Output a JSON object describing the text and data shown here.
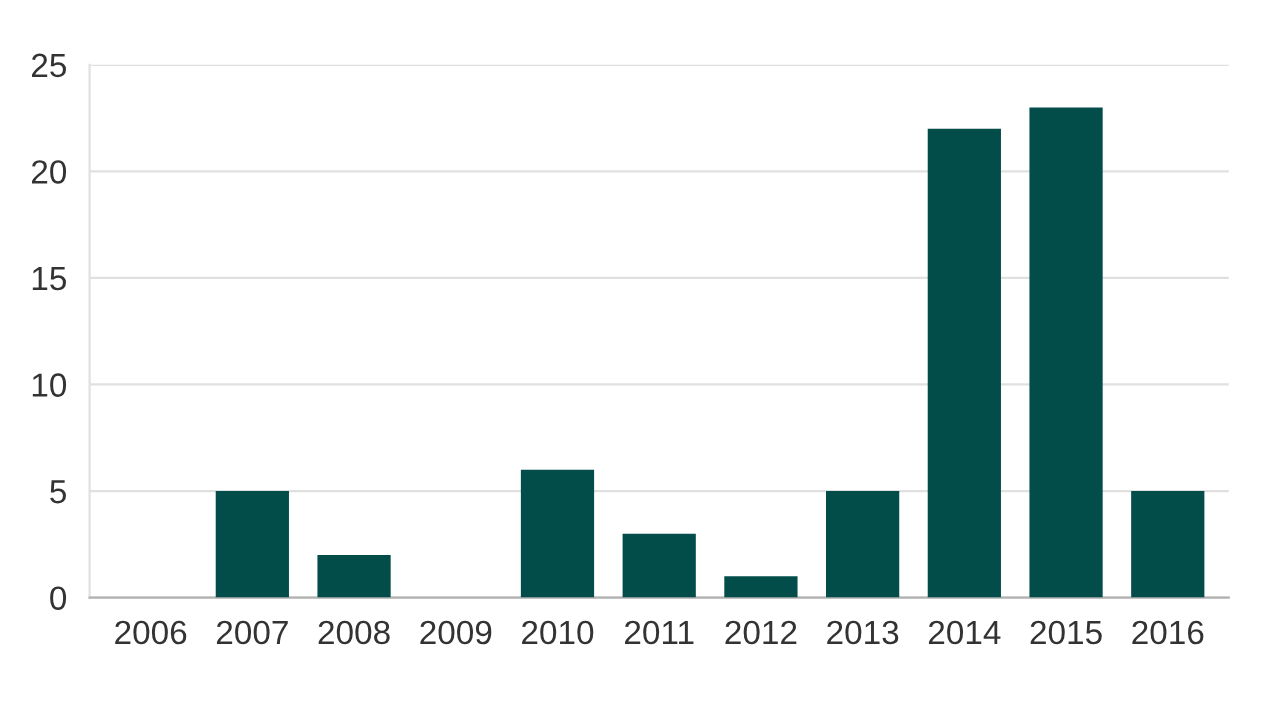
{
  "chart_data": {
    "type": "bar",
    "categories": [
      "2006",
      "2007",
      "2008",
      "2009",
      "2010",
      "2011",
      "2012",
      "2013",
      "2014",
      "2015",
      "2016"
    ],
    "values": [
      0,
      5,
      2,
      0,
      6,
      3,
      1,
      5,
      22,
      23,
      5
    ],
    "color": "#024d4a",
    "ylim": [
      0,
      25
    ],
    "yticks": [
      0,
      5,
      10,
      15,
      20,
      25
    ],
    "grid": "y"
  }
}
